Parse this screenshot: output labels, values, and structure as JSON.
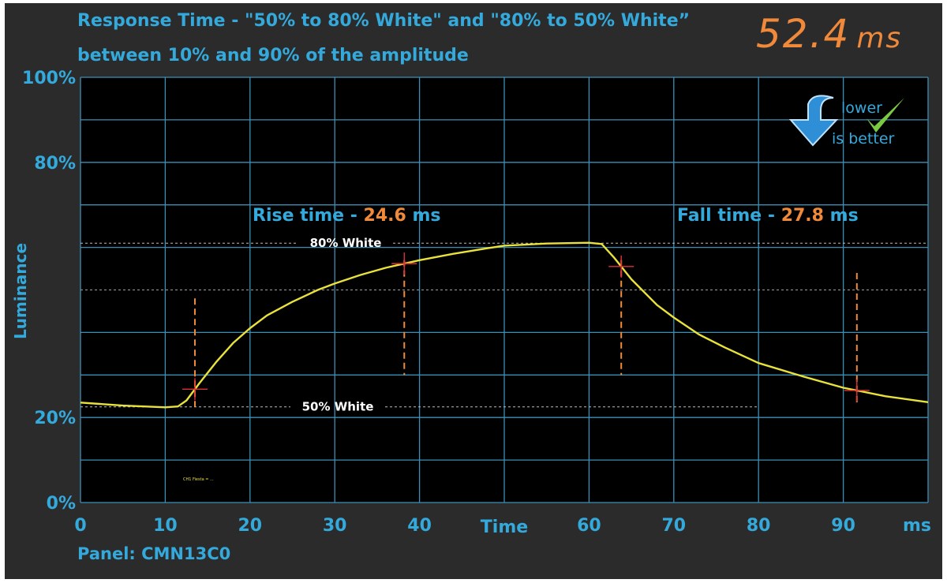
{
  "chart_data": {
    "type": "line",
    "title": "Response Time - \"50% to 80% White\" and \"80% to 50% White”",
    "subtitle": "between 10% and 90% of the amplitude",
    "total_response": {
      "value": "52.4",
      "unit": "ms"
    },
    "xlabel": "Time",
    "x_unit": "ms",
    "ylabel": "Luminance",
    "xlim": [
      0,
      100
    ],
    "ylim": [
      0,
      100
    ],
    "x_ticks": [
      "0",
      "10",
      "20",
      "30",
      "40",
      "60",
      "70",
      "80",
      "90"
    ],
    "y_ticks": [
      "100%",
      "80%",
      "20%",
      "0%"
    ],
    "grid": true,
    "badge": {
      "line1": "lower",
      "line2": "is better",
      "icons": [
        "arrow-down-icon",
        "checkmark-icon"
      ]
    },
    "reference_lines": [
      {
        "label": "80% White",
        "y": 61
      },
      {
        "label": "50% White",
        "y": 22.5
      }
    ],
    "rise": {
      "label": "Rise time -",
      "value": "24.6",
      "unit": "ms",
      "start_x": 13.5,
      "end_x": 38.2
    },
    "fall": {
      "label": "Fall time -",
      "value": "27.8",
      "unit": "ms",
      "start_x": 63.8,
      "end_x": 91.6
    },
    "series": [
      {
        "color": "#e8e23a",
        "x": [
          0,
          5,
          10,
          11.5,
          12.5,
          14,
          16,
          18,
          20,
          22,
          25,
          28,
          30,
          33,
          36,
          40,
          44,
          48,
          50,
          55,
          60,
          61.5,
          63,
          65,
          68,
          70,
          73,
          76,
          80,
          85,
          90,
          95,
          100
        ],
        "y": [
          23.5,
          22.8,
          22.4,
          22.6,
          24,
          28,
          33,
          37.5,
          41,
          44,
          47.2,
          50,
          51.5,
          53.5,
          55.2,
          57,
          58.5,
          59.8,
          60.4,
          60.9,
          61.1,
          60.8,
          57.5,
          52.5,
          46.5,
          43.5,
          39.5,
          36.5,
          32.8,
          29.8,
          27,
          25,
          23.6
        ]
      }
    ],
    "footer": {
      "panel": "Panel: CMN13C0"
    },
    "annotation_text": "CH1 Fiesta = ..."
  }
}
